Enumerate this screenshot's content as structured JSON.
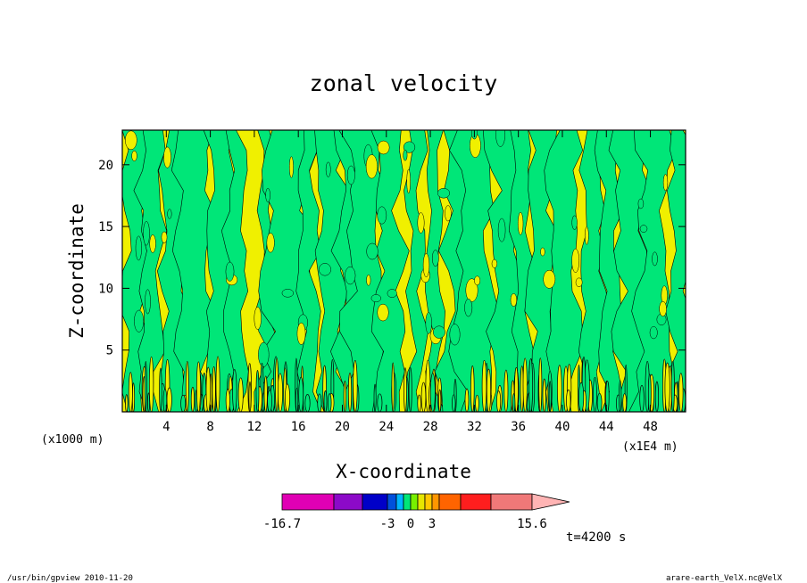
{
  "chart_data": {
    "type": "heatmap",
    "title": "zonal velocity",
    "xlabel": "X-coordinate",
    "ylabel": "Z-coordinate",
    "x_unit_label": "(x1E4 m)",
    "y_unit_label": "(x1000 m)",
    "x_ticks": [
      "4",
      "8",
      "12",
      "16",
      "20",
      "24",
      "28",
      "32",
      "36",
      "40",
      "44",
      "48"
    ],
    "x_tick_values": [
      4,
      8,
      12,
      16,
      20,
      24,
      28,
      32,
      36,
      40,
      44,
      48
    ],
    "y_ticks": [
      "5",
      "10",
      "15",
      "20"
    ],
    "y_tick_values": [
      5,
      10,
      15,
      20
    ],
    "xlim": [
      0,
      51.2
    ],
    "ylim": [
      0,
      22.8
    ],
    "colorbar": {
      "colors": [
        "#e000b4",
        "#8c0ac8",
        "#0000c8",
        "#0050dc",
        "#00b4ff",
        "#00e678",
        "#78f000",
        "#e6e600",
        "#ffc800",
        "#ff9600",
        "#ff6400",
        "#ff1e1e",
        "#f07878",
        "#ffb4b4"
      ],
      "tick_labels": [
        "-16.7",
        "-3",
        "0",
        "3",
        "15.6"
      ],
      "tick_values": [
        -16.7,
        -3,
        0,
        3,
        15.6
      ]
    },
    "field_colors": {
      "negative": "#00e678",
      "positive": "#f0f000",
      "contour": "#000000"
    }
  },
  "time_label": "t=4200 s",
  "footer": {
    "left": "/usr/bin/gpview   2010-11-20",
    "right": "arare-earth_VelX.nc@VelX"
  }
}
